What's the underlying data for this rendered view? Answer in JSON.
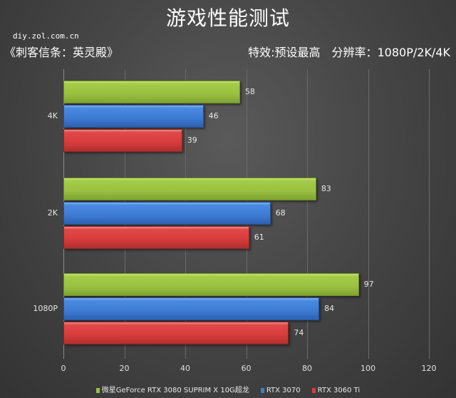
{
  "header": {
    "title": "游戏性能测试",
    "site": "diy.zol.com.cn",
    "game": "《刺客信条：英灵殿》",
    "settings": "特效:预设最高　分辨率：1080P/2K/4K"
  },
  "colors": {
    "series1": "#99c040",
    "series2": "#3d7bd3",
    "series3": "#d63c3c",
    "background": "#474747"
  },
  "chart_data": {
    "type": "bar",
    "orientation": "horizontal",
    "title": "游戏性能测试",
    "subtitle": "《刺客信条：英灵殿》 特效:预设最高 分辨率：1080P/2K/4K",
    "categories": [
      "4K",
      "2K",
      "1080P"
    ],
    "series": [
      {
        "name": "微星GeForce RTX 3080 SUPRIM X 10G超龙",
        "color": "#99c040",
        "values": [
          58,
          83,
          97
        ]
      },
      {
        "name": "RTX 3070",
        "color": "#3d7bd3",
        "values": [
          46,
          68,
          84
        ]
      },
      {
        "name": "RTX 3060 Ti",
        "color": "#d63c3c",
        "values": [
          39,
          61,
          74
        ]
      }
    ],
    "xlabel": "",
    "ylabel": "",
    "xlim": [
      0,
      120
    ],
    "xticks": [
      "0",
      "20",
      "40",
      "60",
      "80",
      "100",
      "120"
    ],
    "grid": true,
    "legend_position": "bottom",
    "data_labels": true
  }
}
